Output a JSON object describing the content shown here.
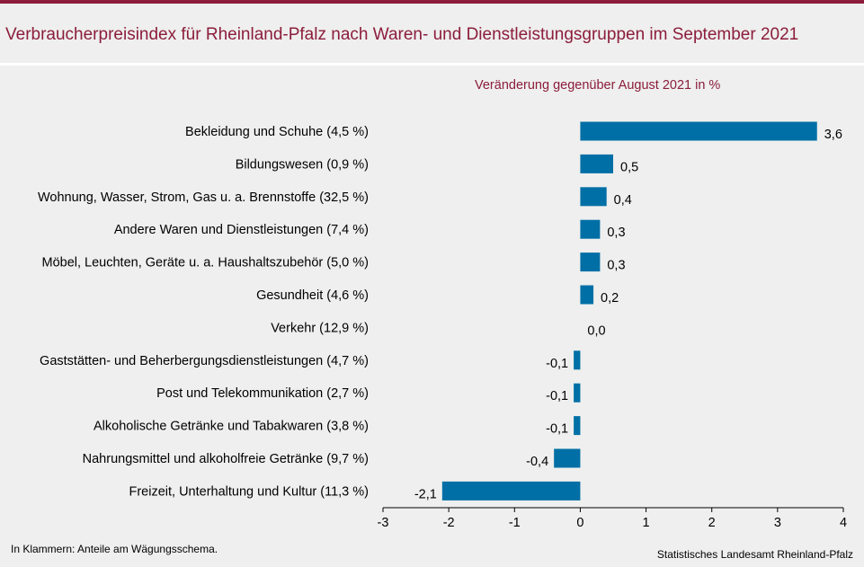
{
  "title": "Verbraucherpreisindex für Rheinland-Pfalz nach Waren- und Dienstleistungsgruppen im September 2021",
  "subtitle": "Veränderung gegenüber August 2021 in %",
  "footnote": "In Klammern: Anteile am Wägungsschema.",
  "source": "Statistisches Landesamt Rheinland-Pfalz",
  "colors": {
    "bar": "#006fa6",
    "accent": "#8c1d3b",
    "background": "#eeefee"
  },
  "chart_data": {
    "type": "bar",
    "orientation": "horizontal",
    "categories": [
      "Bekleidung und Schuhe (4,5 %)",
      "Bildungswesen (0,9 %)",
      "Wohnung, Wasser, Strom, Gas u. a. Brennstoffe (32,5 %)",
      "Andere Waren und Dienstleistungen (7,4 %)",
      "Möbel, Leuchten, Geräte u. a. Haushaltszubehör (5,0 %)",
      "Gesundheit (4,6 %)",
      "Verkehr (12,9 %)",
      "Gaststätten- und Beherbergungsdienstleistungen (4,7 %)",
      "Post und Telekommunikation (2,7 %)",
      "Alkoholische Getränke und Tabakwaren (3,8 %)",
      "Nahrungsmittel und alkoholfreie Getränke (9,7 %)",
      "Freizeit, Unterhaltung und Kultur (11,3 %)"
    ],
    "values": [
      3.6,
      0.5,
      0.4,
      0.3,
      0.3,
      0.2,
      0.0,
      -0.1,
      -0.1,
      -0.1,
      -0.4,
      -2.1
    ],
    "value_labels": [
      "3,6",
      "0,5",
      "0,4",
      "0,3",
      "0,3",
      "0,2",
      "0,0",
      "-0,1",
      "-0,1",
      "-0,1",
      "-0,4",
      "-2,1"
    ],
    "xlim": [
      -3,
      4
    ],
    "x_ticks": [
      -3,
      -2,
      -1,
      0,
      1,
      2,
      3,
      4
    ],
    "x_tick_labels": [
      "-3",
      "-2",
      "-1",
      "0",
      "1",
      "2",
      "3",
      "4"
    ],
    "grid": false,
    "legend": "none"
  }
}
